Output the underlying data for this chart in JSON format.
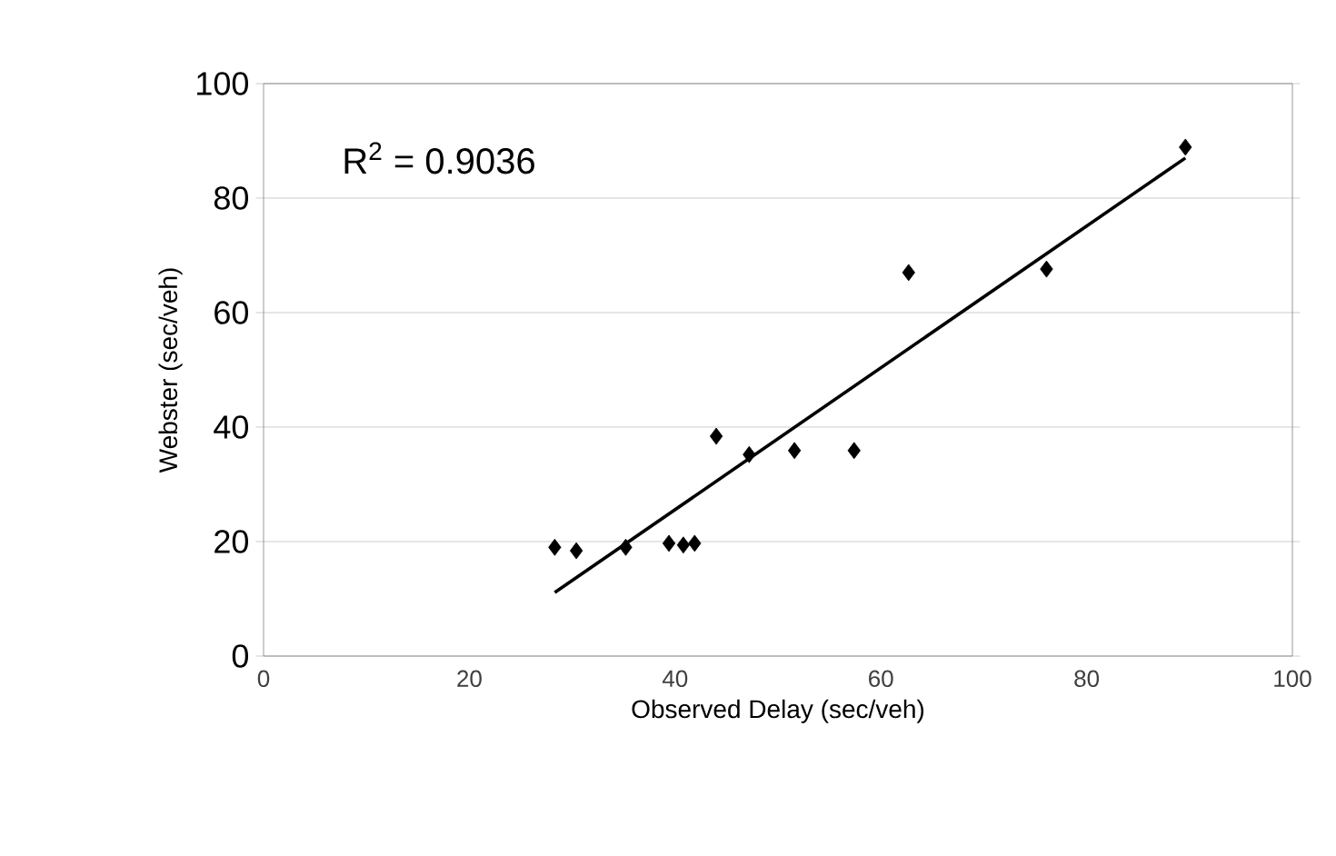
{
  "chart_data": {
    "type": "scatter",
    "xlabel": "Observed Delay (sec/veh)",
    "ylabel": "Webster (sec/veh)",
    "xlim": [
      0,
      100
    ],
    "ylim": [
      0,
      100
    ],
    "xticks": [
      0,
      20,
      40,
      60,
      80,
      100
    ],
    "yticks": [
      0,
      20,
      40,
      60,
      80,
      100
    ],
    "grid": "y",
    "annotations": [
      "R$^{2}$ = 0.9036"
    ],
    "series": [
      {
        "color": "#000000",
        "marker": "diamond",
        "x": [
          28.3,
          30.4,
          35.2,
          39.4,
          40.8,
          41.9,
          44.0,
          47.2,
          51.6,
          57.4,
          62.7,
          76.1,
          89.6
        ],
        "values": [
          19.0,
          18.4,
          19.0,
          19.7,
          19.4,
          19.7,
          38.4,
          35.2,
          35.9,
          35.9,
          67.0,
          67.6,
          88.9
        ]
      },
      {
        "type": "line",
        "color": "#000000",
        "marker": "none",
        "x": [
          28.3,
          89.6
        ],
        "values": [
          11.1,
          87.0
        ]
      }
    ]
  }
}
